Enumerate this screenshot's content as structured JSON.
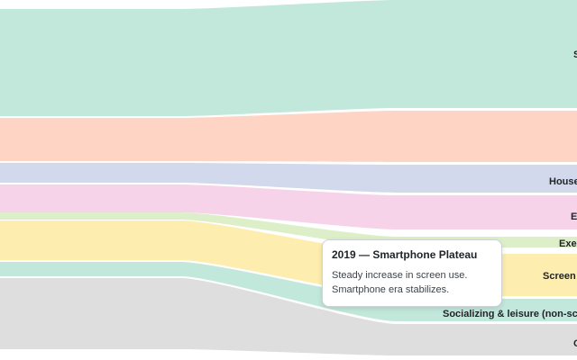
{
  "chart_data": {
    "type": "area",
    "series": [
      {
        "name": "S",
        "color": "#c2e8db",
        "label_color": "#1f2328"
      },
      {
        "name": "",
        "color": "#fed4c4",
        "label_color": "#1f2328"
      },
      {
        "name": "House",
        "color": "#d3d9ec",
        "label_color": "#1f2328"
      },
      {
        "name": "E",
        "color": "#f6d3e9",
        "label_color": "#1f2328"
      },
      {
        "name": "Exe",
        "color": "#dcefc8",
        "label_color": "#1f2328"
      },
      {
        "name": "Screen",
        "color": "#fdedae",
        "label_color": "#1f2328"
      },
      {
        "name": "Socializing & leisure (non-scr",
        "color": "#c2e8db",
        "label_color": "#1f2328"
      },
      {
        "name": "C",
        "color": "#dedede",
        "label_color": "#1f2328"
      }
    ]
  },
  "tooltip": {
    "title": "2019 — Smartphone Plateau",
    "lines": [
      "Steady increase in screen use.",
      "Smartphone era stabilizes."
    ]
  }
}
